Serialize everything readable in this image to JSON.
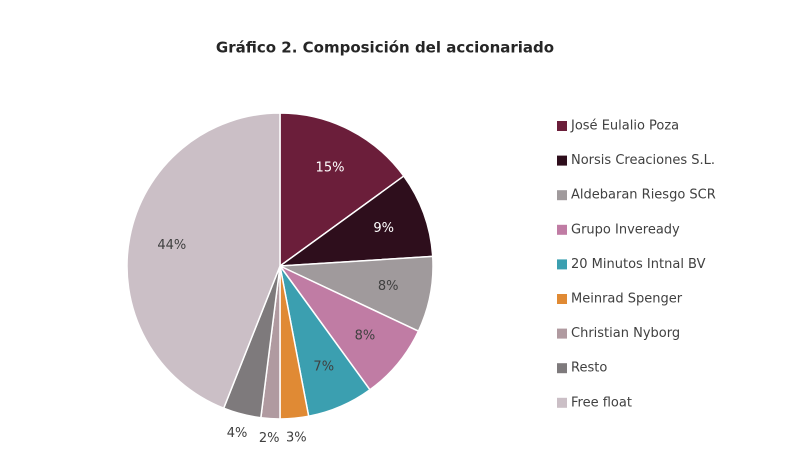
{
  "chart_data": {
    "type": "pie",
    "title": "Gráfico 2. Composición del accionariado",
    "categories": [
      "José Eulalio Poza",
      "Norsis Creaciones S.L.",
      "Aldebaran Riesgo SCR",
      "Grupo Inveready",
      "20 Minutos Intnal BV",
      "Meinrad Spenger",
      "Christian Nyborg",
      "Resto",
      "Free float"
    ],
    "values": [
      15,
      9,
      8,
      8,
      7,
      3,
      2,
      4,
      44
    ],
    "value_labels": [
      "15%",
      "9%",
      "8%",
      "8%",
      "7%",
      "3%",
      "2%",
      "4%",
      "44%"
    ],
    "colors": [
      "#6b1e3a",
      "#2e0e1c",
      "#a09a9c",
      "#c07ca4",
      "#3b9fb0",
      "#e08a34",
      "#b09aa0",
      "#7e7a7c",
      "#cbbfc6"
    ],
    "legend": "right"
  }
}
